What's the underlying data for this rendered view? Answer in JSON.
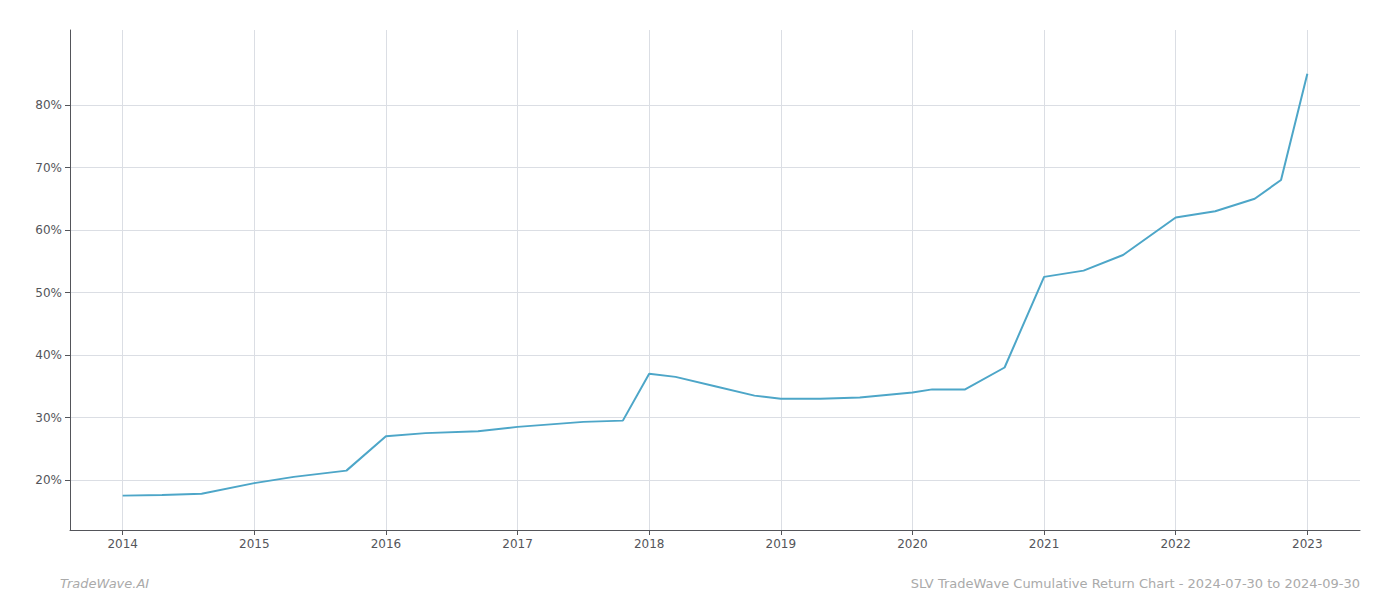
{
  "chart_data": {
    "type": "line",
    "x": [
      2014.0,
      2014.3,
      2014.6,
      2015.0,
      2015.3,
      2015.7,
      2016.0,
      2016.3,
      2016.7,
      2017.0,
      2017.5,
      2017.8,
      2018.0,
      2018.2,
      2018.5,
      2018.8,
      2019.0,
      2019.3,
      2019.6,
      2020.0,
      2020.15,
      2020.4,
      2020.7,
      2021.0,
      2021.3,
      2021.6,
      2022.0,
      2022.3,
      2022.6,
      2022.8,
      2023.0
    ],
    "values": [
      17.5,
      17.6,
      17.8,
      19.5,
      20.5,
      21.5,
      27.0,
      27.5,
      27.8,
      28.5,
      29.3,
      29.5,
      37.0,
      36.5,
      35.0,
      33.5,
      33.0,
      33.0,
      33.2,
      34.0,
      34.5,
      34.5,
      38.0,
      52.5,
      53.5,
      56.0,
      62.0,
      63.0,
      65.0,
      68.0,
      85.0
    ],
    "color": "#4da6c8",
    "xlim": [
      2013.6,
      2023.4
    ],
    "xticks": [
      2014,
      2015,
      2016,
      2017,
      2018,
      2019,
      2020,
      2021,
      2022,
      2023
    ],
    "ylim": [
      12,
      92
    ],
    "yticks": [
      {
        "value": 20,
        "label": "20%"
      },
      {
        "value": 30,
        "label": "30%"
      },
      {
        "value": 40,
        "label": "40%"
      },
      {
        "value": 50,
        "label": "50%"
      },
      {
        "value": 60,
        "label": "60%"
      },
      {
        "value": 70,
        "label": "70%"
      },
      {
        "value": 80,
        "label": "80%"
      }
    ],
    "grid": true,
    "annotations": [
      "TradeWave.AI",
      "SLV TradeWave Cumulative Return Chart - 2024-07-30 to 2024-09-30"
    ]
  }
}
